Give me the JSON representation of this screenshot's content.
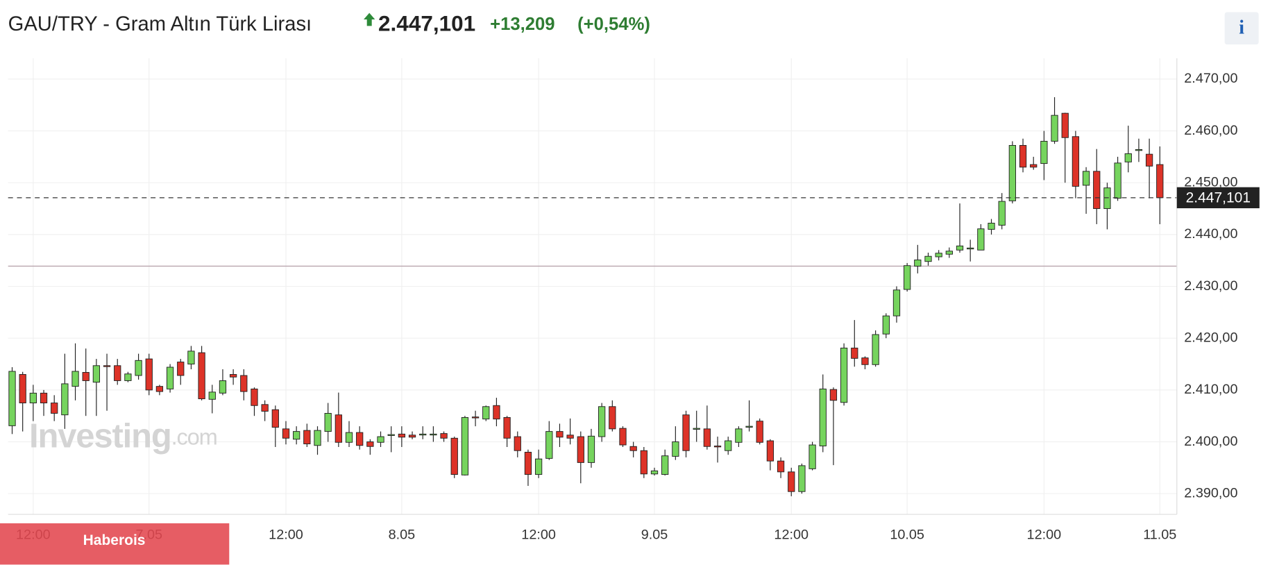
{
  "chart_data": {
    "type": "candlestick",
    "title": "GAU/TRY - Gram Altın Türk Lirası",
    "last_price": {
      "value": 2447.101,
      "label": "2.447,101"
    },
    "change": "+13,209",
    "change_percent": "(+0,54%)",
    "info_icon": "i",
    "watermark": "Investing",
    "watermark_suffix": ".com",
    "banner": "Haberois",
    "prev_close": 2433.892,
    "up_color": "#76d45e",
    "down_color": "#dd3328",
    "grid": true,
    "ylim": [
      2386,
      2474
    ],
    "yticks": [
      {
        "value": 2390,
        "label": "2.390,00"
      },
      {
        "value": 2400,
        "label": "2.400,00"
      },
      {
        "value": 2410,
        "label": "2.410,00"
      },
      {
        "value": 2420,
        "label": "2.420,00"
      },
      {
        "value": 2430,
        "label": "2.430,00"
      },
      {
        "value": 2440,
        "label": "2.440,00"
      },
      {
        "value": 2450,
        "label": "2.450,00"
      },
      {
        "value": 2460,
        "label": "2.460,00"
      },
      {
        "value": 2470,
        "label": "2.470,00"
      }
    ],
    "categories": [
      null,
      null,
      "12:00",
      null,
      null,
      null,
      null,
      null,
      null,
      null,
      null,
      null,
      null,
      "7.05",
      null,
      null,
      null,
      null,
      null,
      null,
      null,
      null,
      null,
      null,
      null,
      null,
      "12:00",
      null,
      null,
      null,
      null,
      null,
      null,
      null,
      null,
      null,
      null,
      "8.05",
      null,
      null,
      null,
      null,
      null,
      null,
      null,
      null,
      null,
      null,
      null,
      null,
      "12:00",
      null,
      null,
      null,
      null,
      null,
      null,
      null,
      null,
      null,
      null,
      "9.05",
      null,
      null,
      null,
      null,
      null,
      null,
      null,
      null,
      null,
      null,
      null,
      null,
      "12:00",
      null,
      null,
      null,
      null,
      null,
      null,
      null,
      null,
      null,
      null,
      "10.05",
      null,
      null,
      null,
      null,
      null,
      null,
      null,
      null,
      null,
      null,
      null,
      null,
      "12:00",
      null,
      null,
      null,
      null,
      null,
      null,
      null,
      null,
      null,
      null,
      "11.05"
    ],
    "series": [
      {
        "open": [
          2403.1,
          2413,
          2407.5,
          2409.4,
          2407.5,
          2405.2,
          2410.7,
          2413.4,
          2411.5,
          2414.7,
          2414.7,
          2411.8,
          2412.8,
          2416,
          2410.7,
          2410.2,
          2415.4,
          2415,
          2417.2,
          2408.2,
          2409.4,
          2413,
          2412.8,
          2410.2,
          2407.2,
          2406.2,
          2402.5,
          2400.5,
          2402.2,
          2399.3,
          2402,
          2405.2,
          2399.9,
          2401.8,
          2400,
          2399.9,
          2401.3,
          2401.5,
          2401.3,
          2401.5,
          2401.4,
          2401.6,
          2400.7,
          2393.6,
          2404.8,
          2404.4,
          2407,
          2404.7,
          2401,
          2398,
          2393.7,
          2396.8,
          2402,
          2401.3,
          2401,
          2396,
          2401,
          2406.8,
          2402.6,
          2399.1,
          2398.3,
          2393.8,
          2393.7,
          2397.2,
          2405.2,
          2402.5,
          2402.5,
          2399.2,
          2398.3,
          2399.9,
          2402.9,
          2404,
          2400.2,
          2396.3,
          2394.2,
          2390.4,
          2394.8,
          2399.2,
          2410.1,
          2407.6,
          2418.1,
          2416.2,
          2414.9,
          2420.8,
          2424.3,
          2429.4,
          2433.9,
          2434.8,
          2435.7,
          2436.2,
          2437,
          2437.3,
          2437,
          2441,
          2441.8,
          2446.5,
          2457.2,
          2453.5,
          2453.7,
          2458,
          2463.4,
          2458.9,
          2449.5,
          2452.2,
          2445,
          2447,
          2454,
          2456.3,
          2455.5,
          2453.5
        ],
        "high": [
          2414.4,
          2413.5,
          2411,
          2410,
          2409,
          2417,
          2419,
          2418,
          2416,
          2417,
          2416,
          2413.5,
          2417,
          2417,
          2411,
          2415,
          2416,
          2418.5,
          2418.5,
          2411,
          2414,
          2414,
          2414,
          2410.5,
          2408,
          2407,
          2404,
          2403,
          2403.5,
          2403,
          2407.5,
          2409.5,
          2404,
          2403,
          2400.5,
          2402,
          2403,
          2403,
          2402,
          2403,
          2403,
          2402,
          2401,
          2405,
          2406,
          2407,
          2408.5,
          2405,
          2402,
          2398.5,
          2398.5,
          2404,
          2403.5,
          2404.5,
          2402,
          2402.5,
          2407.5,
          2408,
          2403,
          2400,
          2399,
          2395,
          2398.5,
          2403,
          2406,
          2406,
          2407,
          2401,
          2401,
          2403,
          2408,
          2404.5,
          2400.5,
          2397,
          2395,
          2395.8,
          2400,
          2413,
          2410.5,
          2419,
          2423.5,
          2416.5,
          2421.5,
          2424.8,
          2430,
          2434.5,
          2438,
          2436.5,
          2437,
          2437.5,
          2446,
          2439,
          2442,
          2443,
          2448,
          2458,
          2458.5,
          2455,
          2460,
          2466.5,
          2463.5,
          2460,
          2453,
          2456.5,
          2450,
          2455,
          2461,
          2458.5,
          2458.5,
          2457
        ],
        "low": [
          2401.5,
          2402,
          2404,
          2405,
          2404,
          2402.5,
          2408,
          2405,
          2405,
          2406,
          2411,
          2411.5,
          2412,
          2409,
          2409,
          2409.5,
          2411,
          2414,
          2408,
          2405.5,
          2409,
          2411,
          2408,
          2405,
          2404,
          2399,
          2399.5,
          2399.5,
          2399,
          2397.5,
          2400,
          2399,
          2399,
          2398.5,
          2397.5,
          2399,
          2398,
          2399,
          2400.5,
          2400.5,
          2400,
          2400,
          2393,
          2393.5,
          2403,
          2404,
          2403,
          2399,
          2397,
          2391.5,
          2393,
          2396.5,
          2399,
          2399.5,
          2392,
          2395,
          2400,
          2402,
          2399,
          2397,
          2393,
          2393.5,
          2393.5,
          2396.5,
          2397,
          2400,
          2398.5,
          2396,
          2397.5,
          2399,
          2402,
          2399.5,
          2394.5,
          2393,
          2389.5,
          2390,
          2394.5,
          2398,
          2395.5,
          2407,
          2414.5,
          2414,
          2414.5,
          2420,
          2423,
          2429,
          2432.5,
          2434,
          2435,
          2435.5,
          2436.5,
          2434.8,
          2437,
          2440,
          2441,
          2446,
          2452,
          2452.5,
          2450.5,
          2457.5,
          2450,
          2447,
          2444,
          2442,
          2441,
          2446.5,
          2452,
          2454,
          2447,
          2442
        ],
        "close": [
          2413.6,
          2407.5,
          2409.4,
          2407.5,
          2405.5,
          2411.2,
          2413.6,
          2411.8,
          2414.7,
          2414.6,
          2411.8,
          2413.1,
          2415.7,
          2410,
          2409.7,
          2414.4,
          2412.8,
          2417.5,
          2408.3,
          2409.6,
          2411.8,
          2412.5,
          2409.7,
          2407,
          2405.9,
          2402.8,
          2400.7,
          2402,
          2399.6,
          2402.2,
          2405.5,
          2399.9,
          2401.8,
          2399.3,
          2399.1,
          2401,
          2401.4,
          2400.9,
          2400.9,
          2401.5,
          2401.5,
          2400.7,
          2393.7,
          2404.7,
          2404.7,
          2406.8,
          2404.4,
          2400.7,
          2398.3,
          2393.7,
          2396.7,
          2402,
          2400.9,
          2400.7,
          2396,
          2401.1,
          2406.8,
          2402.5,
          2399.4,
          2398.3,
          2393.8,
          2394.4,
          2397.3,
          2400,
          2398.3,
          2402.6,
          2399.1,
          2399.1,
          2400.2,
          2402.5,
          2403,
          2399.9,
          2396.3,
          2394.2,
          2390.4,
          2395.4,
          2399.4,
          2410.2,
          2408,
          2418.1,
          2416.1,
          2414.9,
          2420.7,
          2424.3,
          2429.3,
          2434,
          2435.1,
          2435.8,
          2436.4,
          2436.8,
          2437.8,
          2437.4,
          2441.1,
          2442.2,
          2446.4,
          2457.2,
          2453,
          2453,
          2458,
          2463,
          2458.7,
          2449.3,
          2452.2,
          2445,
          2449,
          2453.8,
          2455.6,
          2456.4,
          2453.2,
          2447.101
        ]
      }
    ]
  }
}
